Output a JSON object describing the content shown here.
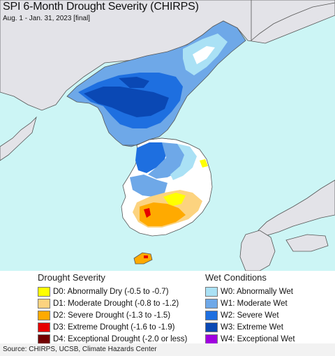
{
  "header": {
    "title": "SPI 6-Month Drought Severity (CHIRPS)",
    "subtitle": "Aug. 1 - Jan. 31, 2023 [final]"
  },
  "legend": {
    "drought": {
      "heading": "Drought Severity",
      "items": [
        {
          "label": "D0: Abnormally Dry (-0.5 to -0.7)",
          "color": "#ffff00"
        },
        {
          "label": "D1: Moderate Drought (-0.8 to -1.2)",
          "color": "#fcd37f"
        },
        {
          "label": "D2: Severe Drought (-1.3 to -1.5)",
          "color": "#ffaa00"
        },
        {
          "label": "D3: Extreme Drought (-1.6 to -1.9)",
          "color": "#e60000"
        },
        {
          "label": "D4: Exceptional Drought (-2.0 or less)",
          "color": "#730000"
        }
      ]
    },
    "wet": {
      "heading": "Wet Conditions",
      "items": [
        {
          "label": "W0: Abnormally Wet",
          "color": "#aae1f5"
        },
        {
          "label": "W1: Moderate Wet",
          "color": "#6ea8e8"
        },
        {
          "label": "W2: Severe Wet",
          "color": "#1e6fe0"
        },
        {
          "label": "W3: Extreme Wet",
          "color": "#0a48b4"
        },
        {
          "label": "W4: Exceptional Wet",
          "color": "#a000e0"
        }
      ]
    }
  },
  "map": {
    "colors": {
      "ocean": "#ccf5f5",
      "land_outside": "#e3e3e8",
      "normal": "#ffffff",
      "border": "#555555"
    }
  },
  "footer": {
    "source": "Source: CHIRPS, UCSB, Climate Hazards Center"
  }
}
